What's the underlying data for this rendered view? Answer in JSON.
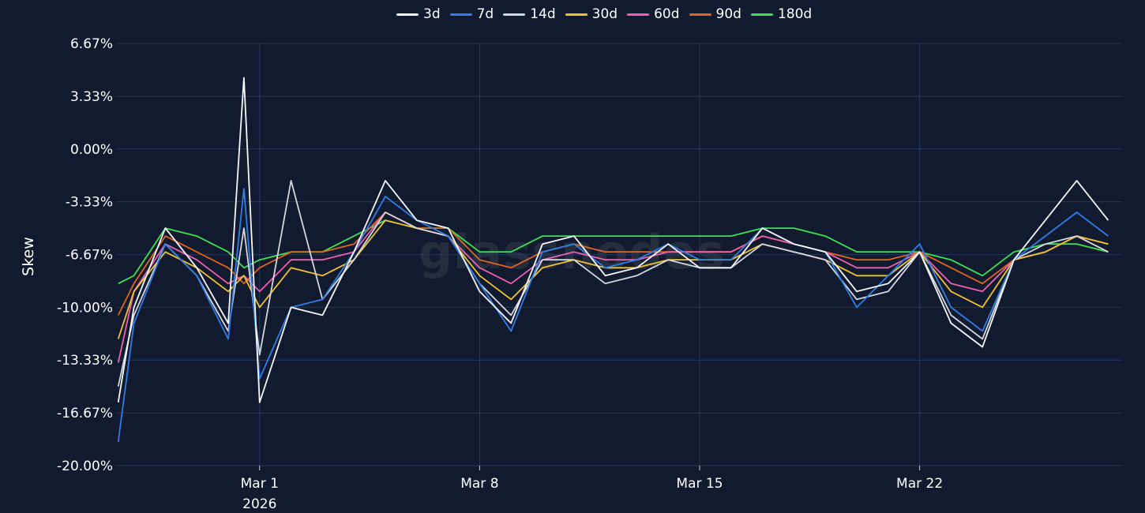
{
  "chart_data": {
    "type": "line",
    "ylabel": "Skew",
    "y_ticks": [
      "6.67%",
      "3.33%",
      "0.00%",
      "-3.33%",
      "-6.67%",
      "-10.00%",
      "-13.33%",
      "-16.67%",
      "-20.00%"
    ],
    "ylim": [
      -20.0,
      6.67
    ],
    "x_ticks": [
      {
        "date": "2026-03-01",
        "label": "Mar 1",
        "sublabel": "2026"
      },
      {
        "date": "2026-03-08",
        "label": "Mar 8",
        "sublabel": ""
      },
      {
        "date": "2026-03-15",
        "label": "Mar 15",
        "sublabel": ""
      },
      {
        "date": "2026-03-22",
        "label": "Mar 22",
        "sublabel": ""
      }
    ],
    "xlim": [
      "2026-02-24T11:00",
      "2026-03-28T10:00"
    ],
    "watermark": "glassnodes",
    "series": [
      {
        "name": "3d",
        "color": "#f5f7fa",
        "x": [
          "2026-02-24T12:00",
          "2026-02-25",
          "2026-02-26",
          "2026-02-27",
          "2026-02-28",
          "2026-02-28T12:00",
          "2026-03-01",
          "2026-03-02",
          "2026-03-03",
          "2026-03-04",
          "2026-03-05",
          "2026-03-06",
          "2026-03-07",
          "2026-03-08",
          "2026-03-09",
          "2026-03-10",
          "2026-03-11",
          "2026-03-12",
          "2026-03-13",
          "2026-03-14",
          "2026-03-15",
          "2026-03-16",
          "2026-03-17",
          "2026-03-18",
          "2026-03-19",
          "2026-03-20",
          "2026-03-21",
          "2026-03-22",
          "2026-03-23",
          "2026-03-24",
          "2026-03-25",
          "2026-03-26",
          "2026-03-27",
          "2026-03-28"
        ],
        "values": [
          -16.0,
          -10.0,
          -5.0,
          -7.5,
          -11.0,
          4.5,
          -16.0,
          -10.0,
          -10.5,
          -6.5,
          -2.0,
          -4.5,
          -5.0,
          -9.0,
          -11.0,
          -6.0,
          -5.5,
          -8.0,
          -7.5,
          -6.0,
          -7.5,
          -7.5,
          -5.0,
          -6.0,
          -6.5,
          -9.0,
          -8.5,
          -6.5,
          -11.0,
          -12.5,
          -7.0,
          -4.5,
          -2.0,
          -4.5
        ]
      },
      {
        "name": "7d",
        "color": "#2f7de6",
        "x": [
          "2026-02-24T12:00",
          "2026-02-25",
          "2026-02-26",
          "2026-02-27",
          "2026-02-28",
          "2026-02-28T12:00",
          "2026-03-01",
          "2026-03-02",
          "2026-03-03",
          "2026-03-04",
          "2026-03-05",
          "2026-03-06",
          "2026-03-07",
          "2026-03-08",
          "2026-03-09",
          "2026-03-10",
          "2026-03-11",
          "2026-03-12",
          "2026-03-13",
          "2026-03-14",
          "2026-03-15",
          "2026-03-16",
          "2026-03-17",
          "2026-03-18",
          "2026-03-19",
          "2026-03-20",
          "2026-03-21",
          "2026-03-22",
          "2026-03-23",
          "2026-03-24",
          "2026-03-25",
          "2026-03-26",
          "2026-03-27",
          "2026-03-28"
        ],
        "values": [
          -18.5,
          -11.0,
          -6.0,
          -8.0,
          -12.0,
          -2.5,
          -14.5,
          -10.0,
          -9.5,
          -6.5,
          -3.0,
          -4.5,
          -5.5,
          -8.5,
          -11.5,
          -6.5,
          -6.0,
          -7.5,
          -7.0,
          -6.0,
          -7.0,
          -7.0,
          -5.0,
          -6.0,
          -6.5,
          -10.0,
          -8.0,
          -6.0,
          -10.0,
          -11.5,
          -7.0,
          -5.5,
          -4.0,
          -5.5
        ]
      },
      {
        "name": "14d",
        "color": "#d3d6dc",
        "x": [
          "2026-02-24T12:00",
          "2026-02-25",
          "2026-02-26",
          "2026-02-27",
          "2026-02-28",
          "2026-02-28T12:00",
          "2026-03-01",
          "2026-03-02",
          "2026-03-03",
          "2026-03-04",
          "2026-03-05",
          "2026-03-06",
          "2026-03-07",
          "2026-03-08",
          "2026-03-09",
          "2026-03-10",
          "2026-03-11",
          "2026-03-12",
          "2026-03-13",
          "2026-03-14",
          "2026-03-15",
          "2026-03-16",
          "2026-03-17",
          "2026-03-18",
          "2026-03-19",
          "2026-03-20",
          "2026-03-21",
          "2026-03-22",
          "2026-03-23",
          "2026-03-24",
          "2026-03-25",
          "2026-03-26",
          "2026-03-27",
          "2026-03-28"
        ],
        "values": [
          -15.0,
          -10.5,
          -6.0,
          -8.0,
          -11.5,
          -5.0,
          -13.0,
          -2.0,
          -9.5,
          -7.0,
          -4.0,
          -5.0,
          -5.5,
          -8.5,
          -10.5,
          -7.0,
          -7.0,
          -8.5,
          -8.0,
          -7.0,
          -7.5,
          -7.5,
          -6.0,
          -6.5,
          -7.0,
          -9.5,
          -9.0,
          -6.5,
          -10.5,
          -12.0,
          -7.0,
          -6.0,
          -5.5,
          -6.5
        ]
      },
      {
        "name": "30d",
        "color": "#f0c22e",
        "x": [
          "2026-02-24T12:00",
          "2026-02-25",
          "2026-02-26",
          "2026-02-27",
          "2026-02-28",
          "2026-02-28T12:00",
          "2026-03-01",
          "2026-03-02",
          "2026-03-03",
          "2026-03-04",
          "2026-03-05",
          "2026-03-06",
          "2026-03-07",
          "2026-03-08",
          "2026-03-09",
          "2026-03-10",
          "2026-03-11",
          "2026-03-12",
          "2026-03-13",
          "2026-03-14",
          "2026-03-15",
          "2026-03-16",
          "2026-03-17",
          "2026-03-18",
          "2026-03-19",
          "2026-03-20",
          "2026-03-21",
          "2026-03-22",
          "2026-03-23",
          "2026-03-24",
          "2026-03-25",
          "2026-03-26",
          "2026-03-27",
          "2026-03-28"
        ],
        "values": [
          -12.0,
          -9.0,
          -6.5,
          -7.5,
          -9.0,
          -8.0,
          -10.0,
          -7.5,
          -8.0,
          -7.0,
          -4.5,
          -5.0,
          -5.5,
          -8.0,
          -9.5,
          -7.5,
          -7.0,
          -7.5,
          -7.5,
          -7.0,
          -7.0,
          -7.0,
          -6.0,
          -6.5,
          -7.0,
          -8.0,
          -8.0,
          -6.5,
          -9.0,
          -10.0,
          -7.0,
          -6.5,
          -5.5,
          -6.0
        ]
      },
      {
        "name": "60d",
        "color": "#ee5fb1",
        "x": [
          "2026-02-24T12:00",
          "2026-02-25",
          "2026-02-26",
          "2026-02-27",
          "2026-02-28",
          "2026-02-28T12:00",
          "2026-03-01",
          "2026-03-02",
          "2026-03-03",
          "2026-03-04",
          "2026-03-05",
          "2026-03-06",
          "2026-03-07",
          "2026-03-08",
          "2026-03-09",
          "2026-03-10",
          "2026-03-11",
          "2026-03-12",
          "2026-03-13",
          "2026-03-14",
          "2026-03-15",
          "2026-03-16",
          "2026-03-17",
          "2026-03-18",
          "2026-03-19",
          "2026-03-20",
          "2026-03-21",
          "2026-03-22",
          "2026-03-23",
          "2026-03-24",
          "2026-03-25",
          "2026-03-26",
          "2026-03-27",
          "2026-03-28"
        ],
        "values": [
          -13.5,
          -9.0,
          -6.0,
          -7.0,
          -8.5,
          -8.0,
          -9.0,
          -7.0,
          -7.0,
          -6.5,
          -4.0,
          -5.0,
          -5.5,
          -7.5,
          -8.5,
          -7.0,
          -6.5,
          -7.0,
          -7.0,
          -6.5,
          -6.5,
          -6.5,
          -5.5,
          -6.0,
          -6.5,
          -7.5,
          -7.5,
          -6.5,
          -8.5,
          -9.0,
          -7.0,
          -6.5,
          -5.5,
          -6.0
        ]
      },
      {
        "name": "90d",
        "color": "#e0641e",
        "x": [
          "2026-02-24T12:00",
          "2026-02-25",
          "2026-02-26",
          "2026-02-27",
          "2026-02-28",
          "2026-02-28T12:00",
          "2026-03-01",
          "2026-03-02",
          "2026-03-03",
          "2026-03-04",
          "2026-03-05",
          "2026-03-06",
          "2026-03-07",
          "2026-03-08",
          "2026-03-09",
          "2026-03-10",
          "2026-03-11",
          "2026-03-12",
          "2026-03-13",
          "2026-03-14",
          "2026-03-15",
          "2026-03-16",
          "2026-03-17",
          "2026-03-18",
          "2026-03-19",
          "2026-03-20",
          "2026-03-21",
          "2026-03-22",
          "2026-03-23",
          "2026-03-24",
          "2026-03-25",
          "2026-03-26",
          "2026-03-27",
          "2026-03-28"
        ],
        "values": [
          -10.5,
          -8.5,
          -5.5,
          -6.5,
          -7.5,
          -8.5,
          -7.5,
          -6.5,
          -6.5,
          -6.0,
          -4.0,
          -5.0,
          -5.0,
          -7.0,
          -7.5,
          -6.5,
          -6.0,
          -6.5,
          -6.5,
          -6.5,
          -6.5,
          -6.5,
          -5.5,
          -6.0,
          -6.5,
          -7.0,
          -7.0,
          -6.5,
          -7.5,
          -8.5,
          -7.0,
          -6.5,
          -5.5,
          -6.5
        ]
      },
      {
        "name": "180d",
        "color": "#3be150",
        "x": [
          "2026-02-24T12:00",
          "2026-02-25",
          "2026-02-26",
          "2026-02-27",
          "2026-02-28",
          "2026-02-28T12:00",
          "2026-03-01",
          "2026-03-02",
          "2026-03-03",
          "2026-03-04",
          "2026-03-05",
          "2026-03-06",
          "2026-03-07",
          "2026-03-08",
          "2026-03-09",
          "2026-03-10",
          "2026-03-11",
          "2026-03-12",
          "2026-03-13",
          "2026-03-14",
          "2026-03-15",
          "2026-03-16",
          "2026-03-17",
          "2026-03-18",
          "2026-03-19",
          "2026-03-20",
          "2026-03-21",
          "2026-03-22",
          "2026-03-23",
          "2026-03-24",
          "2026-03-25",
          "2026-03-26",
          "2026-03-27",
          "2026-03-28"
        ],
        "values": [
          -8.5,
          -8.0,
          -5.0,
          -5.5,
          -6.5,
          -7.5,
          -7.0,
          -6.5,
          -6.5,
          -5.5,
          -4.5,
          -5.0,
          -5.0,
          -6.5,
          -6.5,
          -5.5,
          -5.5,
          -5.5,
          -5.5,
          -5.5,
          -5.5,
          -5.5,
          -5.0,
          -5.0,
          -5.5,
          -6.5,
          -6.5,
          -6.5,
          -7.0,
          -8.0,
          -6.5,
          -6.0,
          -6.0,
          -6.5
        ]
      }
    ]
  }
}
